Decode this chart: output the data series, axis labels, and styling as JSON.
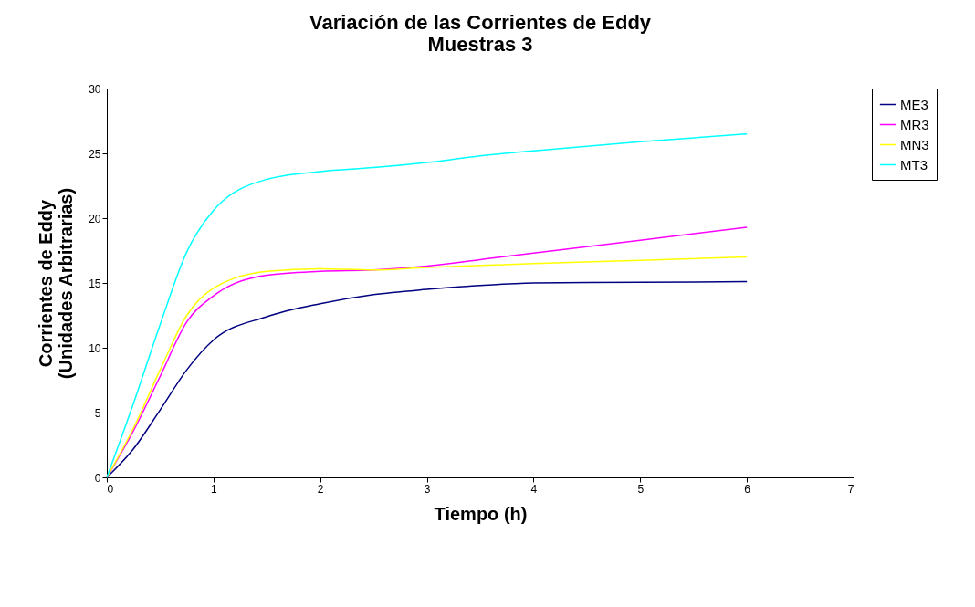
{
  "chart_data": {
    "type": "line",
    "title": [
      "Variación de las Corrientes de Eddy",
      "Muestras 3"
    ],
    "xlabel": "Tiempo (h)",
    "ylabel": [
      "Corrientes de Eddy",
      "(Unidades Arbitrarias)"
    ],
    "x": [
      0,
      0.25,
      0.5,
      0.75,
      1,
      1.5,
      2,
      2.5,
      3,
      3.5,
      4,
      5,
      6
    ],
    "series": [
      {
        "name": "ME3",
        "color": "#000080",
        "values": [
          0,
          2.2,
          5.2,
          8.3,
          10.6,
          12.4,
          13.4,
          14.1,
          14.5,
          14.8,
          15.0,
          15.05,
          15.1
        ]
      },
      {
        "name": "MR3",
        "color": "#ff00ff",
        "values": [
          0,
          3.6,
          7.8,
          12.0,
          14.0,
          15.6,
          15.9,
          16.0,
          16.3,
          16.8,
          17.3,
          18.3,
          19.3
        ]
      },
      {
        "name": "MN3",
        "color": "#ffff00",
        "values": [
          0,
          3.8,
          8.3,
          12.5,
          14.6,
          15.9,
          16.1,
          16.0,
          16.2,
          16.35,
          16.5,
          16.75,
          17.0
        ]
      },
      {
        "name": "MT3",
        "color": "#00ffff",
        "values": [
          0,
          5.7,
          11.8,
          17.4,
          20.6,
          23.0,
          23.6,
          23.9,
          24.3,
          24.8,
          25.2,
          25.9,
          26.5
        ]
      }
    ],
    "xlim": [
      0,
      7
    ],
    "xticks": [
      0,
      1,
      2,
      3,
      4,
      5,
      6,
      7
    ],
    "ylim": [
      0,
      30
    ],
    "yticks": [
      0,
      5,
      10,
      15,
      20,
      25,
      30
    ],
    "grid": false,
    "legend": "right",
    "marker": "none",
    "line_style": "solid"
  }
}
